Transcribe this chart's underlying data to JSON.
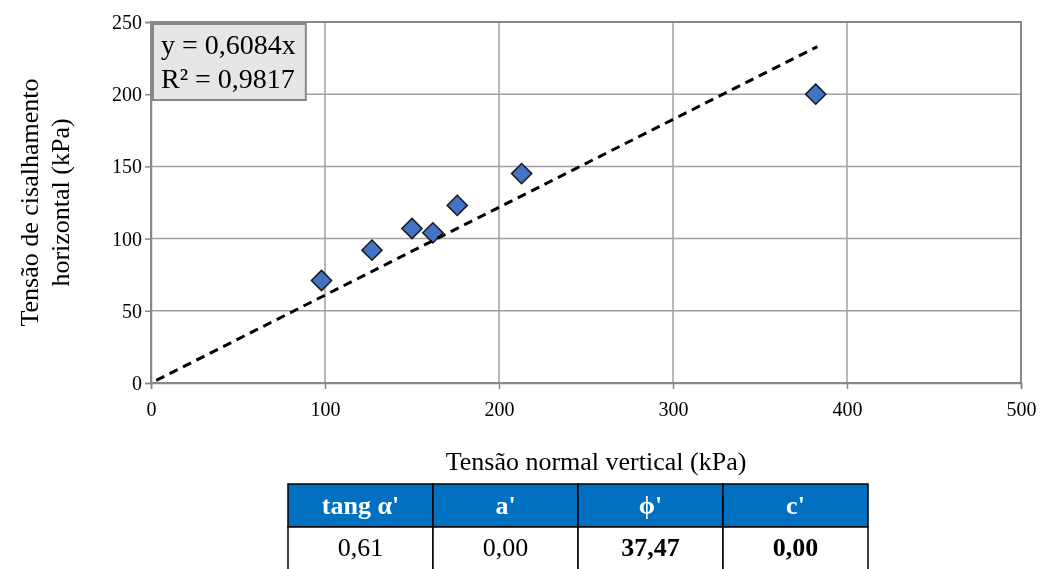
{
  "chart_data": [
    {
      "type": "scatter",
      "xlabel": "Tensão normal vertical (kPa)",
      "ylabel": "Tensão de cisalhamento horizontal (kPa)",
      "xlim": [
        0,
        500
      ],
      "xticks": [
        0,
        100,
        200,
        300,
        400,
        500
      ],
      "ylim": [
        0,
        250
      ],
      "yticks": [
        0,
        50,
        100,
        150,
        200,
        250
      ],
      "grid": true,
      "series": [
        {
          "type": "scatter",
          "color": "#4472c4",
          "marker": "diamond",
          "x": [
            98,
            127,
            150,
            162,
            176,
            213,
            382
          ],
          "values": [
            71,
            92,
            107,
            104,
            123,
            145,
            200
          ]
        },
        {
          "type": "line",
          "color": "#000000",
          "line_style": "dashed",
          "marker": "none",
          "x": [
            3,
            383
          ],
          "values": [
            1.8,
            233
          ]
        }
      ],
      "annotations": [
        "y = 0,6084x",
        "R² = 0,9817"
      ]
    },
    {
      "type": "other",
      "categories": [
        "tang α'",
        "a'",
        "ϕ'",
        "c'"
      ],
      "annotations": [
        "0,61",
        "0,00",
        "37,47",
        "0,00"
      ]
    }
  ]
}
